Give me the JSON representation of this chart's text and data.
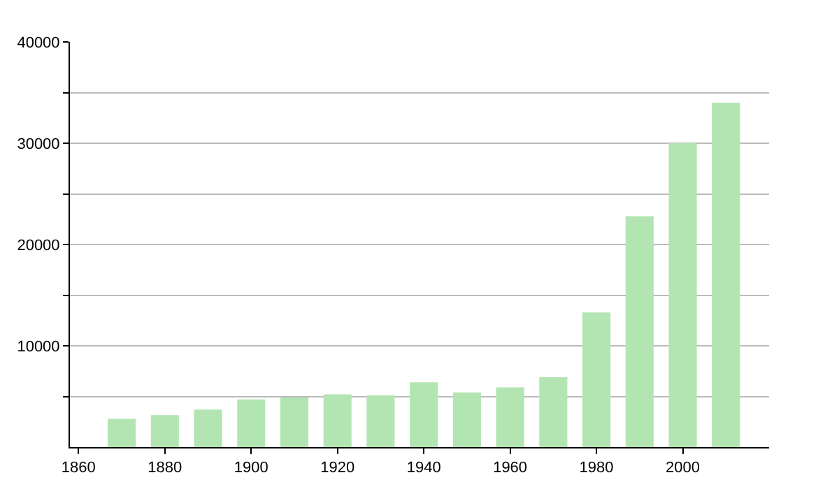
{
  "chart_data": {
    "type": "bar",
    "x": [
      1870,
      1880,
      1890,
      1900,
      1910,
      1920,
      1930,
      1940,
      1950,
      1960,
      1970,
      1980,
      1990,
      2000,
      2010
    ],
    "values": [
      2800,
      3150,
      3700,
      4700,
      4900,
      5200,
      5100,
      6400,
      5400,
      5900,
      6900,
      13300,
      22800,
      30000,
      34000
    ],
    "color": "#b3e5b3",
    "xlim": [
      1858,
      2020
    ],
    "xticks": [
      1860,
      1880,
      1900,
      1920,
      1940,
      1960,
      1980,
      2000
    ],
    "ylim": [
      0,
      40000
    ],
    "yticks": [
      {
        "value": 5000,
        "label": null
      },
      10000,
      {
        "value": 15000,
        "label": null
      },
      20000,
      {
        "value": 25000,
        "label": null
      },
      30000,
      {
        "value": 35000,
        "label": null
      },
      40000
    ],
    "grid": "y"
  }
}
